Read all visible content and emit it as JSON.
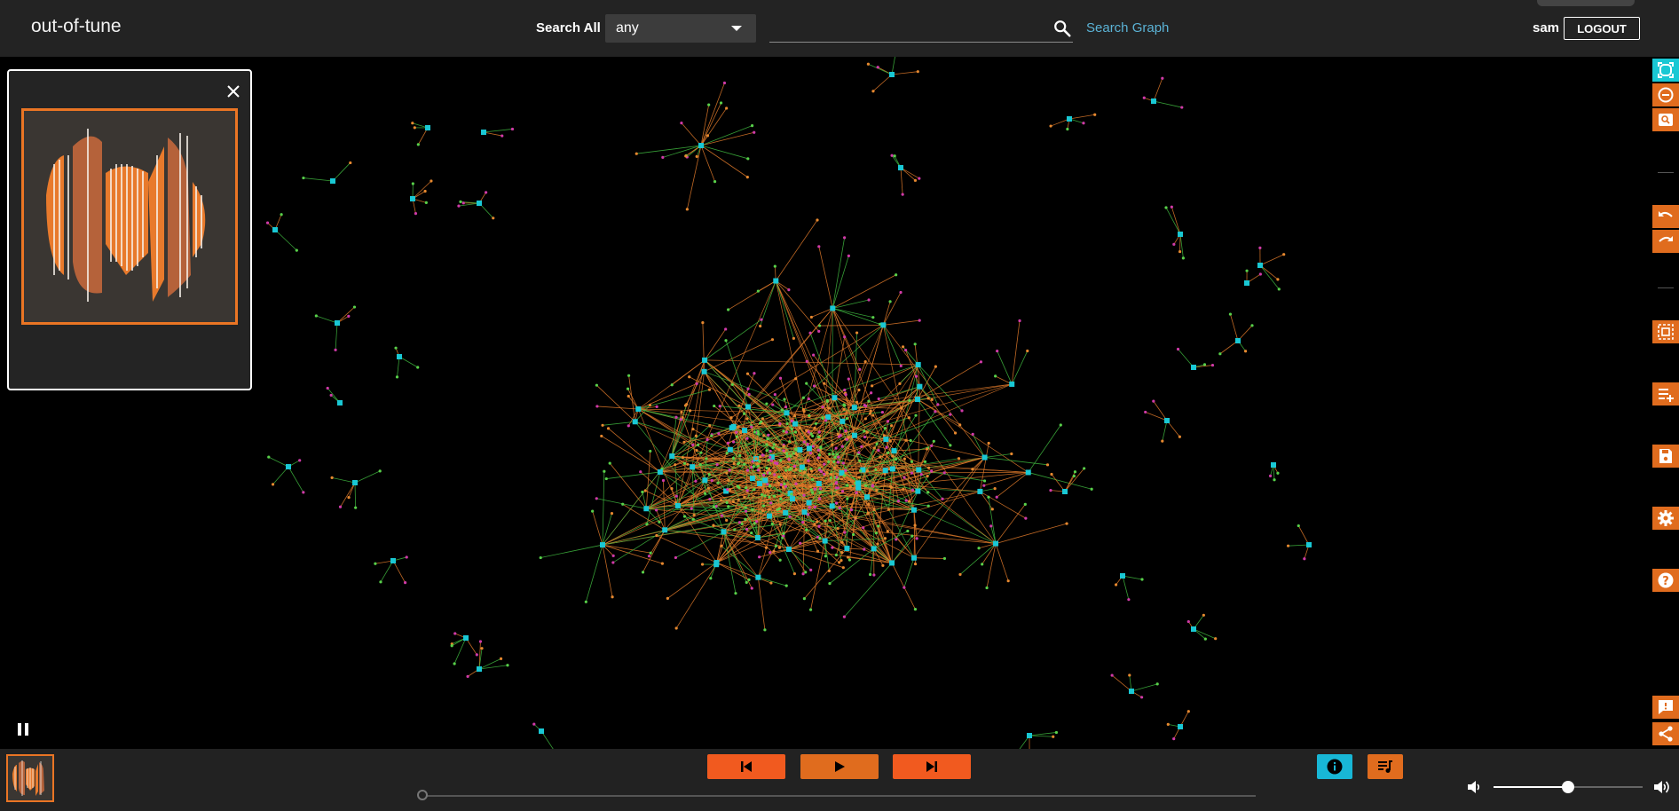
{
  "header": {
    "app_title": "out-of-tune",
    "search_all_label": "Search All",
    "search_select_value": "any",
    "search_input_value": "",
    "search_input_placeholder": "",
    "search_graph_label": "Search Graph",
    "user_name": "sam",
    "logout_label": "LOGOUT"
  },
  "graph": {
    "edge_colors": [
      "#e07a2a",
      "#3fb93f"
    ],
    "node_colors": {
      "artist": "#19c8d4",
      "track_orange": "#e6882f",
      "track_green": "#58d04a",
      "track_magenta": "#d03aa8"
    }
  },
  "sidebar": {
    "buttons": [
      {
        "name": "fit-graph-icon",
        "color": "#19c8d4"
      },
      {
        "name": "zoom-out-icon",
        "color": "#e06c1e"
      },
      {
        "name": "zoom-search-icon",
        "color": "#e06c1e"
      },
      {
        "name": "undo-icon",
        "color": "#e06c1e"
      },
      {
        "name": "redo-icon",
        "color": "#e06c1e"
      },
      {
        "name": "select-all-icon",
        "color": "#e06c1e"
      },
      {
        "name": "add-to-playlist-icon",
        "color": "#e06c1e"
      },
      {
        "name": "save-icon",
        "color": "#e06c1e"
      },
      {
        "name": "settings-gear-icon",
        "color": "#e06c1e"
      },
      {
        "name": "help-icon",
        "color": "#e06c1e"
      },
      {
        "name": "feedback-icon",
        "color": "#e06c1e"
      },
      {
        "name": "share-icon",
        "color": "#e06c1e"
      }
    ]
  },
  "player": {
    "progress": 0.0,
    "volume": 0.5,
    "colors": {
      "accent": "#f15a1f",
      "play": "#e06c1e",
      "info": "#18b7d6"
    }
  }
}
